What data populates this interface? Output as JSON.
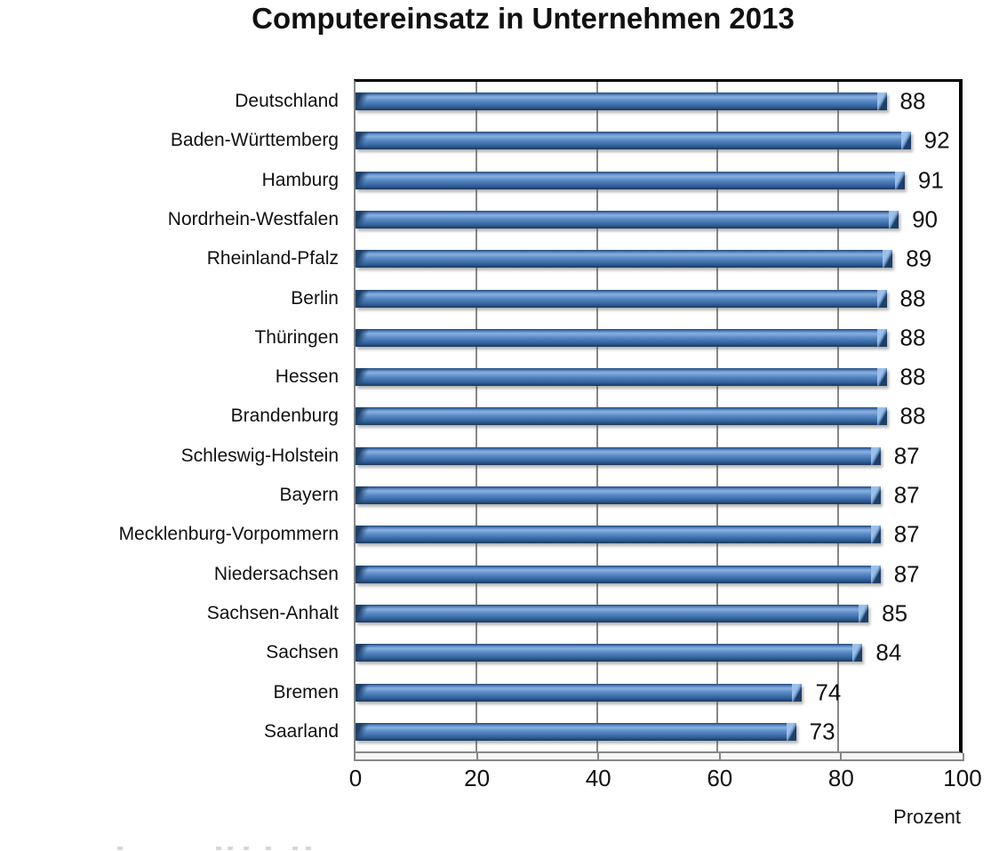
{
  "chart_data": {
    "type": "bar",
    "orientation": "horizontal",
    "title": "Computereinsatz in Unternehmen 2013",
    "xlabel": "Prozent",
    "categories": [
      "Deutschland",
      "Baden-Württemberg",
      "Hamburg",
      "Nordrhein-Westfalen",
      "Rheinland-Pfalz",
      "Berlin",
      "Thüringen",
      "Hessen",
      "Brandenburg",
      "Schleswig-Holstein",
      "Bayern",
      "Mecklenburg-Vorpommern",
      "Niedersachsen",
      "Sachsen-Anhalt",
      "Sachsen",
      "Bremen",
      "Saarland"
    ],
    "values": [
      88,
      92,
      91,
      90,
      89,
      88,
      88,
      88,
      88,
      87,
      87,
      87,
      87,
      85,
      84,
      74,
      73
    ],
    "xlim": [
      0,
      100
    ],
    "xticks": [
      0,
      20,
      40,
      60,
      80,
      100
    ],
    "grid": true,
    "legend": false,
    "value_labels_shown": true,
    "bar_color_main": "#4678B4",
    "bar_color_highlight": "#86AEDE",
    "bar_color_dark": "#1B3A5F",
    "gridline_color": "#878787",
    "axis_color": "#878787",
    "wall_border_color": "#000000",
    "text_color": "#111111",
    "background_color": "#FFFFFF"
  }
}
